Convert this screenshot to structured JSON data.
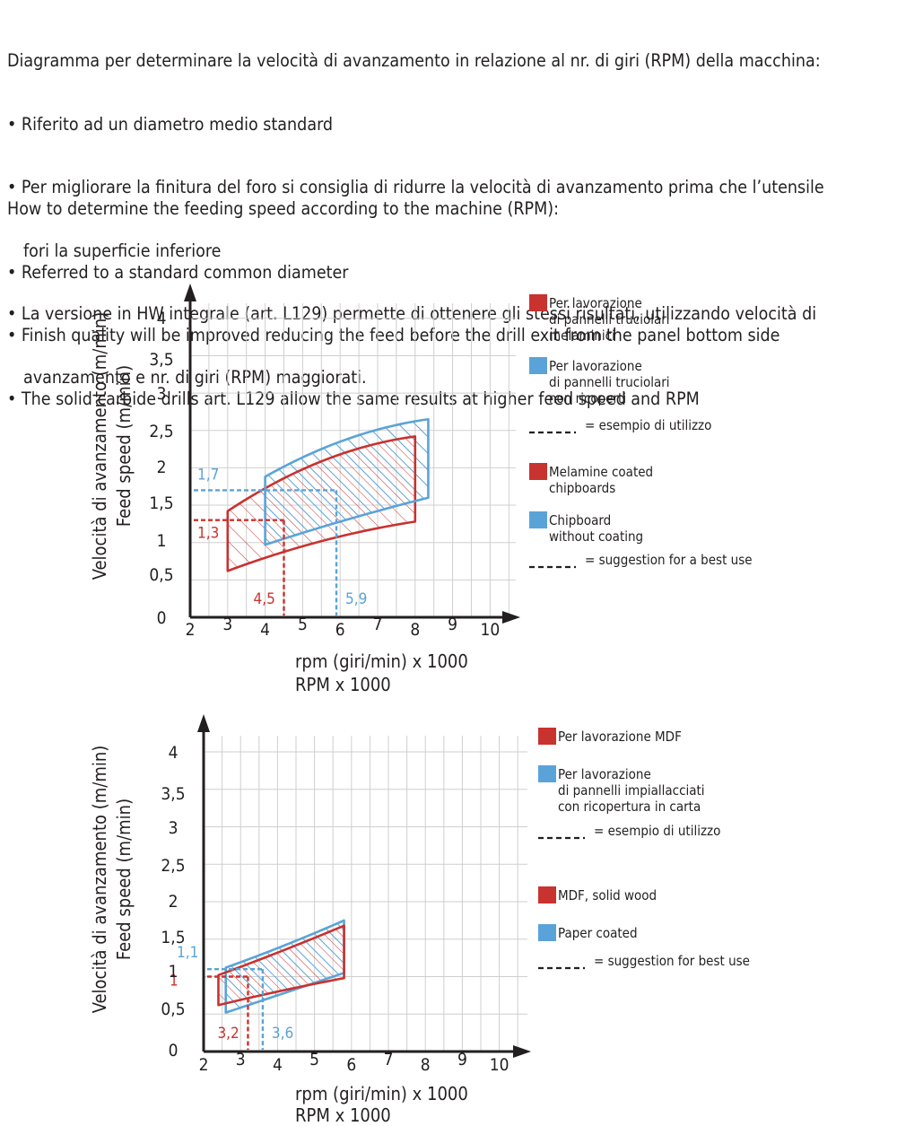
{
  "intro_it": {
    "heading": "Diagramma per determinare la velocità di avanzamento in relazione al nr. di giri (RPM) della macchina:",
    "bullets": [
      "• Riferito ad un diametro medio standard",
      "• Per migliorare la finitura del foro si consiglia di ridurre la velocità di avanzamento prima che l’utensile",
      "fori la superficie inferiore",
      "• La versione in HW integrale (art. L129) permette di ottenere gli stessi risultati, utilizzando velocità di",
      "avanzamento e nr. di giri (RPM) maggiorati."
    ]
  },
  "intro_en": {
    "heading": "How to determine the feeding speed according to the machine (RPM):",
    "bullets": [
      "• Referred to a standard common diameter",
      "• Finish quality will be improved reducing the feed before the drill exit from the panel bottom side",
      "• The solid carbide drills art. L129 allow the same results at higher feed speed and RPM"
    ]
  },
  "colors": {
    "red": "#c8322f",
    "blue": "#5aa3d8",
    "grid": "#cfcfcf",
    "axis": "#231f20"
  },
  "chart_data": [
    {
      "type": "area",
      "ylabel_it": "Velocità di avanzamento (m/min)",
      "ylabel_en": "Feed  speed (m/min)",
      "xlabel_it": "rpm (giri/min) x 1000",
      "xlabel_en": "RPM x 1000",
      "x_ticks": [
        "2",
        "3",
        "4",
        "5",
        "6",
        "7",
        "8",
        "9",
        "10"
      ],
      "y_ticks": [
        "0",
        "0,5",
        "1",
        "1,5",
        "2",
        "2,5",
        "3",
        "3,5",
        "4"
      ],
      "xlim": [
        2,
        10.5
      ],
      "ylim": [
        0,
        4
      ],
      "series": [
        {
          "color": "red",
          "x_min": 3,
          "x_max": 8,
          "lower": [
            [
              3,
              0.62
            ],
            [
              5,
              0.95
            ],
            [
              8,
              1.28
            ]
          ],
          "upper": [
            [
              3,
              1.42
            ],
            [
              5,
              1.98
            ],
            [
              8,
              2.42
            ]
          ]
        },
        {
          "color": "blue",
          "x_min": 4,
          "x_max": 8.35,
          "lower": [
            [
              4,
              0.97
            ],
            [
              6,
              1.28
            ],
            [
              8.35,
              1.6
            ]
          ],
          "upper": [
            [
              4,
              1.88
            ],
            [
              6,
              2.35
            ],
            [
              8.35,
              2.65
            ]
          ]
        }
      ],
      "examples": [
        {
          "color": "red",
          "x": 4.5,
          "y": 1.3,
          "x_label": "4,5",
          "y_label": "1,3"
        },
        {
          "color": "blue",
          "x": 5.9,
          "y": 1.7,
          "x_label": "5,9",
          "y_label": "1,7"
        }
      ],
      "legend": [
        {
          "color": "red",
          "lines": [
            "Per lavorazione",
            "di pannelli truciolari",
            "melaminici"
          ]
        },
        {
          "color": "blue",
          "lines": [
            "Per lavorazione",
            "di pannelli truciolari",
            "non ricoperti"
          ]
        },
        {
          "color": "dash",
          "lines": [
            "= esempio di utilizzo"
          ]
        },
        {
          "color": "red",
          "lines": [
            "Melamine coated",
            "chipboards"
          ]
        },
        {
          "color": "blue",
          "lines": [
            "Chipboard",
            "without coating"
          ]
        },
        {
          "color": "dash",
          "lines": [
            "= suggestion for a best use"
          ]
        }
      ]
    },
    {
      "type": "area",
      "ylabel_it": "Velocità di avanzamento (m/min)",
      "ylabel_en": "Feed  speed (m/min)",
      "xlabel_it": "rpm (giri/min) x 1000",
      "xlabel_en": "RPM x 1000",
      "x_ticks": [
        "2",
        "3",
        "4",
        "5",
        "6",
        "7",
        "8",
        "9",
        "10"
      ],
      "y_ticks": [
        "0",
        "0,5",
        "1",
        "1,5",
        "2",
        "2,5",
        "3",
        "3,5",
        "4"
      ],
      "xlim": [
        2,
        10.5
      ],
      "ylim": [
        0,
        4
      ],
      "series": [
        {
          "color": "blue",
          "x_min": 2.6,
          "x_max": 5.8,
          "lower": [
            [
              2.6,
              0.52
            ],
            [
              4,
              0.75
            ],
            [
              5.8,
              1.05
            ]
          ],
          "upper": [
            [
              2.6,
              1.12
            ],
            [
              4,
              1.38
            ],
            [
              5.8,
              1.75
            ]
          ]
        },
        {
          "color": "red",
          "x_min": 2.4,
          "x_max": 5.8,
          "lower": [
            [
              2.4,
              0.62
            ],
            [
              4,
              0.8
            ],
            [
              5.8,
              0.98
            ]
          ],
          "upper": [
            [
              2.4,
              1.02
            ],
            [
              4,
              1.32
            ],
            [
              5.8,
              1.68
            ]
          ]
        }
      ],
      "examples": [
        {
          "color": "red",
          "x": 3.2,
          "y": 1.0,
          "x_label": "3,2",
          "y_label": "1"
        },
        {
          "color": "blue",
          "x": 3.6,
          "y": 1.1,
          "x_label": "3,6",
          "y_label": "1,1"
        }
      ],
      "legend": [
        {
          "color": "red",
          "lines": [
            "Per lavorazione MDF"
          ]
        },
        {
          "color": "blue",
          "lines": [
            "Per lavorazione",
            "di pannelli impiallacciati",
            "con ricopertura in carta"
          ]
        },
        {
          "color": "dash",
          "lines": [
            "= esempio di utilizzo"
          ]
        },
        {
          "color": "red",
          "lines": [
            "MDF, solid wood"
          ]
        },
        {
          "color": "blue",
          "lines": [
            "Paper coated"
          ]
        },
        {
          "color": "dash",
          "lines": [
            "= suggestion for best use"
          ]
        }
      ]
    }
  ]
}
